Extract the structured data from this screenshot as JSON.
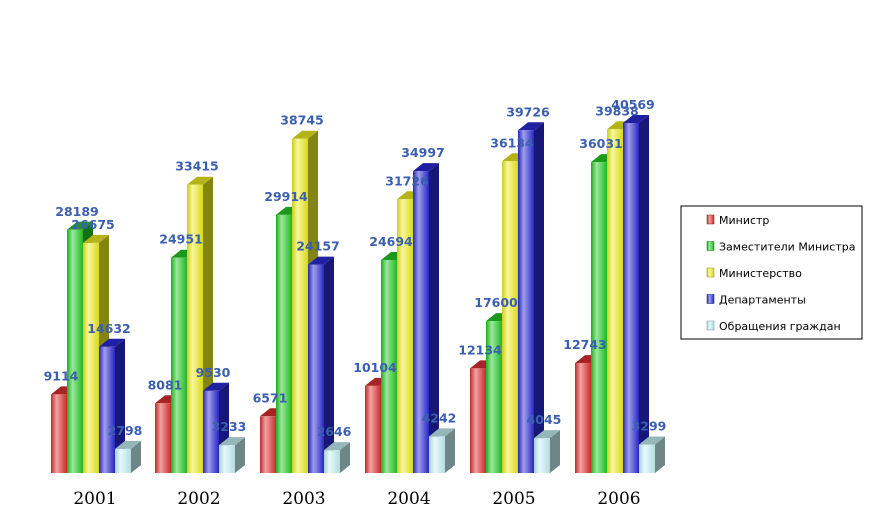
{
  "chart_data": {
    "type": "bar",
    "categories": [
      "2001",
      "2002",
      "2003",
      "2004",
      "2005",
      "2006"
    ],
    "series": [
      {
        "name": "Министр",
        "color": "#e03030",
        "values": [
          9114,
          8081,
          6571,
          10104,
          12134,
          12743
        ]
      },
      {
        "name": "Заместители Министра",
        "color": "#22cc22",
        "values": [
          28189,
          24951,
          29914,
          24694,
          17600,
          36031
        ]
      },
      {
        "name": "Министерство",
        "color": "#f0f020",
        "values": [
          26675,
          33415,
          38745,
          31726,
          36134,
          39838
        ]
      },
      {
        "name": "Департаменты",
        "color": "#2a2ad8",
        "values": [
          14632,
          9530,
          24157,
          34997,
          39726,
          40569
        ]
      },
      {
        "name": "Обращения граждан",
        "color": "#c8f4f8",
        "values": [
          2798,
          3233,
          2646,
          4242,
          4045,
          3299
        ]
      }
    ],
    "legend_position": "right",
    "ylim": [
      0,
      40569
    ],
    "grid": false,
    "style": "3d-cylinder-bars"
  }
}
